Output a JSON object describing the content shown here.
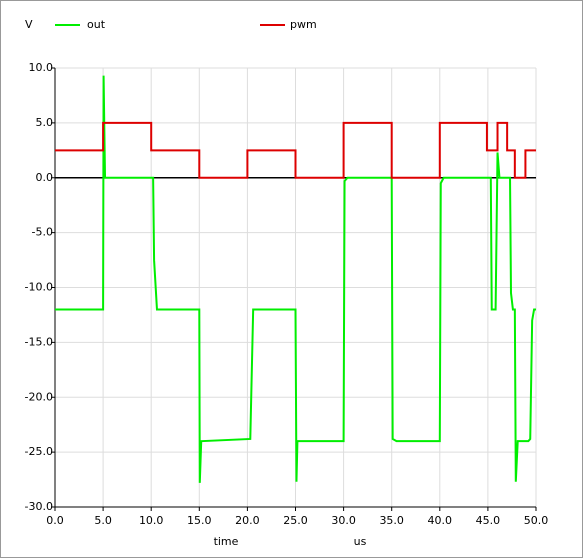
{
  "chart_data": {
    "type": "line",
    "y_label": "V",
    "x_label": "time",
    "x_unit": "us",
    "xlim": [
      0,
      50
    ],
    "ylim": [
      -30,
      10
    ],
    "grid": true,
    "xticks": [
      {
        "value": 0,
        "label": "0.0"
      },
      {
        "value": 5,
        "label": "5.0"
      },
      {
        "value": 10,
        "label": "10.0"
      },
      {
        "value": 15,
        "label": "15.0"
      },
      {
        "value": 20,
        "label": "20.0"
      },
      {
        "value": 25,
        "label": "25.0"
      },
      {
        "value": 30,
        "label": "30.0"
      },
      {
        "value": 35,
        "label": "35.0"
      },
      {
        "value": 40,
        "label": "40.0"
      },
      {
        "value": 45,
        "label": "45.0"
      },
      {
        "value": 50,
        "label": "50.0"
      }
    ],
    "yticks": [
      {
        "value": 10,
        "label": "10.0"
      },
      {
        "value": 5,
        "label": "5.0"
      },
      {
        "value": 0,
        "label": "0.0"
      },
      {
        "value": -5,
        "label": "-5.0"
      },
      {
        "value": -10,
        "label": "-10.0"
      },
      {
        "value": -15,
        "label": "-15.0"
      },
      {
        "value": -20,
        "label": "-20.0"
      },
      {
        "value": -25,
        "label": "-25.0"
      },
      {
        "value": -30,
        "label": "-30.0"
      }
    ],
    "series": [
      {
        "name": "out",
        "color": "#00ee00",
        "x": [
          0,
          5,
          5.05,
          5.2,
          10.2,
          10.3,
          10.6,
          15,
          15.05,
          15.2,
          20.3,
          20.6,
          25,
          25.1,
          25.2,
          30,
          30.1,
          30.4,
          35,
          35.1,
          35.5,
          40,
          40.1,
          40.4,
          45.3,
          45.4,
          45.8,
          46.0,
          46.2,
          47.3,
          47.4,
          47.6,
          47.8,
          47.9,
          48.1,
          49.2,
          49.4,
          49.6,
          49.8,
          50
        ],
        "values": [
          -12,
          -12,
          9.3,
          0,
          0,
          -7.5,
          -12,
          -12,
          -27.8,
          -24,
          -23.8,
          -12,
          -12,
          -27.7,
          -24,
          -24,
          -0.3,
          0,
          0,
          -23.8,
          -24,
          -24,
          -0.5,
          0,
          0,
          -12,
          -12,
          2.3,
          0,
          0,
          -10.5,
          -12,
          -12,
          -27.7,
          -24,
          -24,
          -23.8,
          -13,
          -12,
          -12
        ]
      },
      {
        "name": "pwm",
        "color": "#dd0000",
        "x": [
          0,
          5,
          5,
          10,
          10,
          15,
          15,
          20,
          20,
          25,
          25,
          30,
          30,
          35,
          35,
          40,
          40,
          44.9,
          44.9,
          46,
          46,
          47,
          47,
          47.8,
          47.8,
          48.9,
          48.9,
          50
        ],
        "values": [
          2.5,
          2.5,
          5,
          5,
          2.5,
          2.5,
          0,
          0,
          2.5,
          2.5,
          0,
          0,
          5,
          5,
          0,
          0,
          5,
          5,
          2.5,
          2.5,
          5,
          5,
          2.5,
          2.5,
          0,
          0,
          2.5,
          2.5
        ]
      }
    ]
  }
}
